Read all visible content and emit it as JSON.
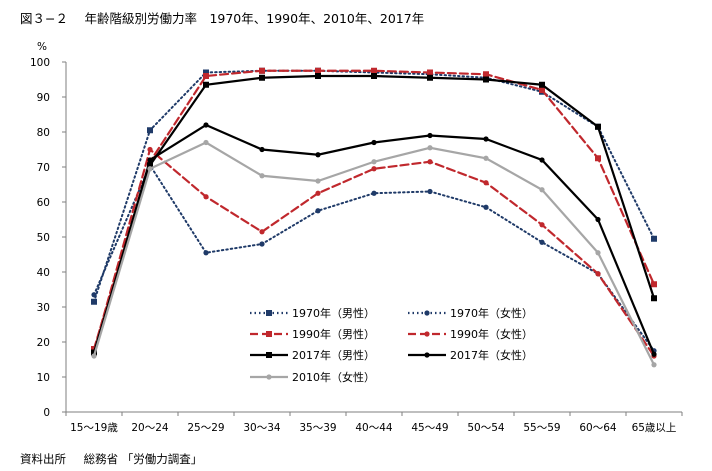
{
  "title": "図３−２　 年齢階級別労働力率　1970年、1990年、2010年、2017年",
  "source": {
    "label": "資料出所",
    "text": "総務省 「労働力調査」"
  },
  "chart_data": {
    "type": "line",
    "ylabel": "%",
    "ylim": [
      0,
      100
    ],
    "yticks": [
      0,
      10,
      20,
      30,
      40,
      50,
      60,
      70,
      80,
      90,
      100
    ],
    "grid": false,
    "legend_position": "center-bottom",
    "categories": [
      "15～19歳",
      "20～24",
      "25～29",
      "30～34",
      "35～39",
      "40～44",
      "45～49",
      "50～54",
      "55～59",
      "60～64",
      "65歳以上"
    ],
    "series": [
      {
        "name": "1970年（男性）",
        "color": "#1f3a68",
        "dash": "dotted",
        "marker": "square",
        "values": [
          31.5,
          80.5,
          97.0,
          97.5,
          97.5,
          97.0,
          96.5,
          95.5,
          91.5,
          81.5,
          49.5
        ]
      },
      {
        "name": "1970年（女性）",
        "color": "#1f3a68",
        "dash": "dotted",
        "marker": "circle",
        "values": [
          33.5,
          70.5,
          45.5,
          48.0,
          57.5,
          62.5,
          63.0,
          58.5,
          48.5,
          39.5,
          17.5
        ]
      },
      {
        "name": "1990年（男性）",
        "color": "#c0282d",
        "dash": "dashed",
        "marker": "square",
        "values": [
          18.0,
          71.5,
          96.0,
          97.5,
          97.5,
          97.5,
          97.0,
          96.5,
          92.0,
          72.5,
          36.5
        ]
      },
      {
        "name": "1990年（女性）",
        "color": "#c0282d",
        "dash": "dashed",
        "marker": "circle",
        "values": [
          17.5,
          75.0,
          61.5,
          51.5,
          62.5,
          69.5,
          71.5,
          65.5,
          53.5,
          39.5,
          16.0
        ]
      },
      {
        "name": "2017年（男性）",
        "color": "#000000",
        "dash": "solid",
        "marker": "square",
        "values": [
          17.0,
          70.5,
          93.5,
          95.5,
          96.0,
          96.0,
          95.5,
          95.0,
          93.5,
          81.5,
          32.5
        ]
      },
      {
        "name": "2017年（女性）",
        "color": "#000000",
        "dash": "solid",
        "marker": "circle",
        "values": [
          16.5,
          72.0,
          82.0,
          75.0,
          73.5,
          77.0,
          79.0,
          78.0,
          72.0,
          55.0,
          16.5
        ]
      },
      {
        "name": "2010年（女性）",
        "color": "#a6a6a6",
        "dash": "solid",
        "marker": "circle",
        "values": [
          16.0,
          69.5,
          77.0,
          67.5,
          66.0,
          71.5,
          75.5,
          72.5,
          63.5,
          45.5,
          13.5
        ]
      }
    ]
  }
}
